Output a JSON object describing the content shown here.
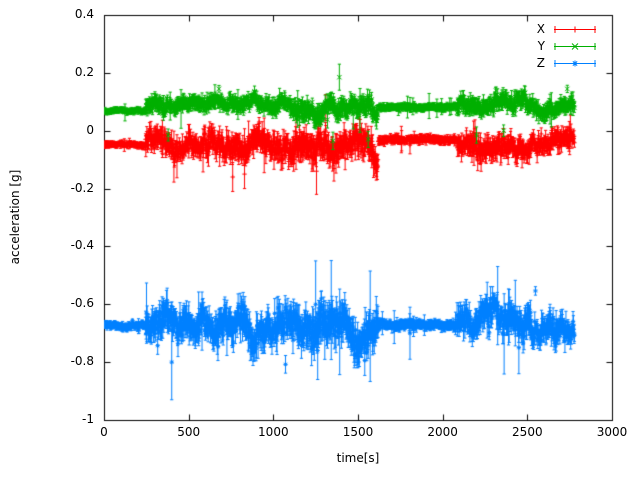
{
  "chart_data": {
    "type": "scatter",
    "style": "points-with-errorbars",
    "title": "",
    "xlabel": "time[s]",
    "ylabel": "acceleration [g]",
    "xlim": [
      0,
      3000
    ],
    "ylim": [
      -1,
      0.4
    ],
    "xticks": {
      "values": [
        0,
        500,
        1000,
        1500,
        2000,
        2500,
        3000
      ],
      "labels": [
        "0",
        "500",
        "1000",
        "1500",
        "2000",
        "2500",
        "3000"
      ]
    },
    "yticks": {
      "values": [
        -1,
        -0.8,
        -0.6,
        -0.4,
        -0.2,
        0,
        0.2,
        0.4
      ],
      "labels": [
        "-1",
        "-0.8",
        "-0.6",
        "-0.4",
        "-0.2",
        "0",
        "0.2",
        "0.4"
      ]
    },
    "grid": false,
    "legend": {
      "position": "top-right",
      "entries": [
        "X",
        "Y",
        "Z"
      ]
    },
    "colors": {
      "axis": "#000000",
      "background": "#ffffff"
    },
    "series": [
      {
        "name": "X",
        "color": "#ff0000",
        "marker": "plus",
        "approx_baseline_g": -0.045,
        "segments": [
          {
            "t0": 0,
            "t1": 245,
            "mean": -0.048,
            "wander": 0.004,
            "jitter": 0.005,
            "err": 0.008
          },
          {
            "t0": 245,
            "t1": 700,
            "mean": -0.04,
            "wander": 0.025,
            "jitter": 0.028,
            "err": 0.022
          },
          {
            "t0": 700,
            "t1": 1100,
            "mean": -0.055,
            "wander": 0.03,
            "jitter": 0.032,
            "err": 0.026
          },
          {
            "t0": 1100,
            "t1": 1620,
            "mean": -0.06,
            "wander": 0.035,
            "jitter": 0.035,
            "err": 0.03
          },
          {
            "t0": 1620,
            "t1": 2085,
            "mean": -0.032,
            "wander": 0.005,
            "jitter": 0.007,
            "err": 0.01
          },
          {
            "t0": 2085,
            "t1": 2520,
            "mean": -0.048,
            "wander": 0.028,
            "jitter": 0.028,
            "err": 0.024
          },
          {
            "t0": 2520,
            "t1": 2780,
            "mean": -0.04,
            "wander": 0.022,
            "jitter": 0.024,
            "err": 0.02
          }
        ],
        "events": [
          {
            "t": 760,
            "v": -0.16,
            "err": 0.05
          },
          {
            "t": 830,
            "v": -0.15,
            "err": 0.05
          },
          {
            "t": 1255,
            "v": -0.14,
            "err": 0.08
          },
          {
            "t": 1310,
            "v": 0.08,
            "err": 0.045
          },
          {
            "t": 1807,
            "v": -0.05,
            "err": 0.03
          }
        ]
      },
      {
        "name": "Y",
        "color": "#00b000",
        "marker": "cross",
        "approx_baseline_g": 0.08,
        "segments": [
          {
            "t0": 0,
            "t1": 245,
            "mean": 0.068,
            "wander": 0.004,
            "jitter": 0.005,
            "err": 0.007
          },
          {
            "t0": 245,
            "t1": 1100,
            "mean": 0.088,
            "wander": 0.018,
            "jitter": 0.018,
            "err": 0.016
          },
          {
            "t0": 1100,
            "t1": 1620,
            "mean": 0.08,
            "wander": 0.026,
            "jitter": 0.024,
            "err": 0.02
          },
          {
            "t0": 1620,
            "t1": 2085,
            "mean": 0.082,
            "wander": 0.005,
            "jitter": 0.006,
            "err": 0.009
          },
          {
            "t0": 2085,
            "t1": 2520,
            "mean": 0.082,
            "wander": 0.024,
            "jitter": 0.02,
            "err": 0.018
          },
          {
            "t0": 2520,
            "t1": 2780,
            "mean": 0.086,
            "wander": 0.018,
            "jitter": 0.018,
            "err": 0.016
          }
        ],
        "events": [
          {
            "t": 1352,
            "v": -0.035,
            "err": 0.03
          },
          {
            "t": 1390,
            "v": 0.185,
            "err": 0.045
          },
          {
            "t": 1560,
            "v": -0.03,
            "err": 0.028
          },
          {
            "t": 1807,
            "v": 0.09,
            "err": 0.025
          },
          {
            "t": 2200,
            "v": -0.015,
            "err": 0.028
          },
          {
            "t": 2360,
            "v": 0.0,
            "err": 0.02
          }
        ]
      },
      {
        "name": "Z",
        "color": "#0080ff",
        "marker": "asterisk",
        "approx_baseline_g": -0.67,
        "segments": [
          {
            "t0": 0,
            "t1": 245,
            "mean": -0.672,
            "wander": 0.005,
            "jitter": 0.006,
            "err": 0.009
          },
          {
            "t0": 245,
            "t1": 700,
            "mean": -0.668,
            "wander": 0.035,
            "jitter": 0.038,
            "err": 0.032
          },
          {
            "t0": 700,
            "t1": 1100,
            "mean": -0.662,
            "wander": 0.04,
            "jitter": 0.04,
            "err": 0.035
          },
          {
            "t0": 1100,
            "t1": 1620,
            "mean": -0.678,
            "wander": 0.045,
            "jitter": 0.045,
            "err": 0.04
          },
          {
            "t0": 1620,
            "t1": 2085,
            "mean": -0.67,
            "wander": 0.005,
            "jitter": 0.008,
            "err": 0.012
          },
          {
            "t0": 2085,
            "t1": 2520,
            "mean": -0.663,
            "wander": 0.038,
            "jitter": 0.035,
            "err": 0.03
          },
          {
            "t0": 2520,
            "t1": 2780,
            "mean": -0.67,
            "wander": 0.032,
            "jitter": 0.03,
            "err": 0.027
          }
        ],
        "events": [
          {
            "t": 400,
            "v": -0.8,
            "err": 0.13
          },
          {
            "t": 1250,
            "v": -0.6,
            "err": 0.15
          },
          {
            "t": 1262,
            "v": -0.76,
            "err": 0.1
          },
          {
            "t": 1807,
            "v": -0.7,
            "err": 0.09
          },
          {
            "t": 2450,
            "v": -0.75,
            "err": 0.09
          }
        ]
      }
    ],
    "render_hints": {
      "dt": 2,
      "seed": 20,
      "marker_size": 2.2,
      "tick_length": 6,
      "errbar_cap_halfwidth": 1.6
    }
  }
}
